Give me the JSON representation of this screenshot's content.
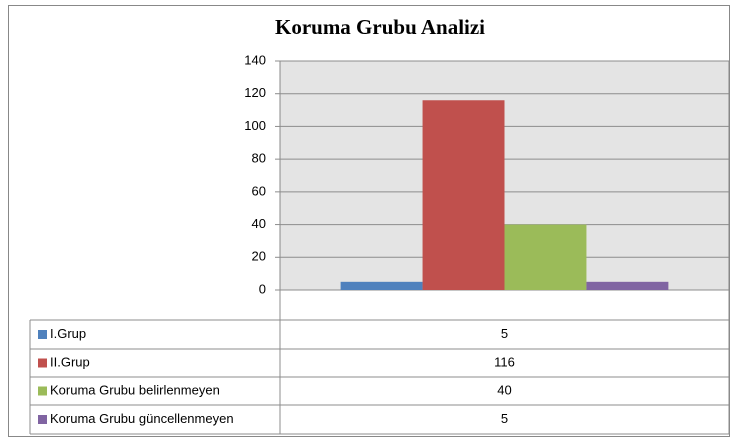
{
  "chart_data": {
    "type": "bar",
    "title": "Koruma Grubu Analizi",
    "categories": [
      null
    ],
    "series": [
      {
        "name": "I.Grup",
        "color": "#4f81bd",
        "values": [
          5
        ]
      },
      {
        "name": "II.Grup",
        "color": "#c0504d",
        "values": [
          116
        ]
      },
      {
        "name": "Koruma Grubu belirlenmeyen",
        "color": "#9bbb59",
        "values": [
          40
        ]
      },
      {
        "name": "Koruma Grubu güncellenmeyen",
        "color": "#8064a2",
        "values": [
          5
        ]
      }
    ],
    "ylim": [
      0,
      140
    ],
    "yticks": [
      0,
      20,
      40,
      60,
      80,
      100,
      120,
      140
    ],
    "grid": true,
    "data_table": true
  }
}
